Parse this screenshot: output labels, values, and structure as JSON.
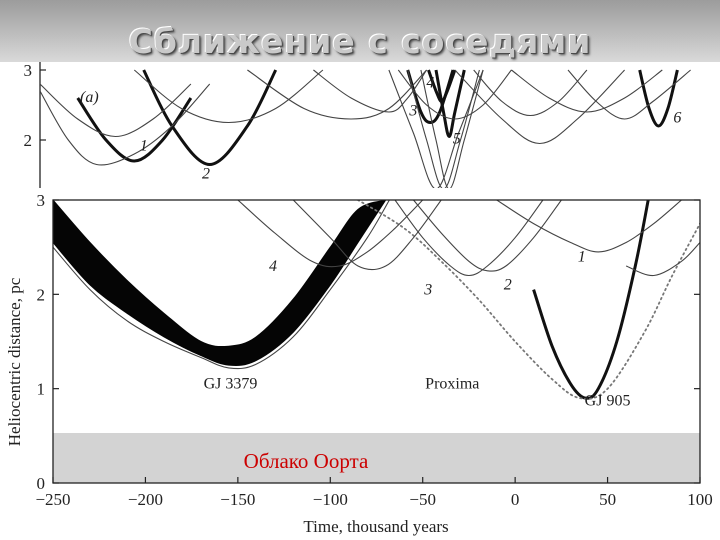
{
  "slide": {
    "title": "Сближение с соседями"
  },
  "chart_data": [
    {
      "type": "line",
      "panel_label": "(a)",
      "xlim": [
        -250,
        100
      ],
      "ylim": [
        1.3,
        3
      ],
      "y_ticks": [
        2,
        3
      ],
      "y_tick_labels": [
        "2",
        "3"
      ],
      "series": [
        {
          "name": "1",
          "style": "bold",
          "x": [
            -230,
            -215,
            -200,
            -185,
            -170
          ],
          "y": [
            2.6,
            2.0,
            1.7,
            2.0,
            2.6
          ]
        },
        {
          "name": "2",
          "style": "bold",
          "x": [
            -195,
            -180,
            -160,
            -140,
            -125
          ],
          "y": [
            3.0,
            2.2,
            1.65,
            2.2,
            3.0
          ]
        },
        {
          "name": "3",
          "style": "bold",
          "x": [
            -55,
            -48,
            -43,
            -38,
            -31
          ],
          "y": [
            3.0,
            2.4,
            2.25,
            2.4,
            3.0
          ]
        },
        {
          "name": "4",
          "style": "bold",
          "x": [
            -44,
            -40,
            -37,
            -34,
            -30
          ],
          "y": [
            3.0,
            2.7,
            2.55,
            2.7,
            3.0
          ]
        },
        {
          "name": "5",
          "style": "bold",
          "x": [
            -40,
            -36,
            -33,
            -30,
            -25
          ],
          "y": [
            3.0,
            2.4,
            2.05,
            2.4,
            3.0
          ]
        },
        {
          "name": "6",
          "style": "bold",
          "x": [
            68,
            73,
            78,
            83,
            88
          ],
          "y": [
            3.0,
            2.45,
            2.2,
            2.45,
            3.0
          ]
        },
        {
          "name": "",
          "style": "thin",
          "x": [
            -250,
            -230,
            -210,
            -190,
            -170
          ],
          "y": [
            2.8,
            2.3,
            2.05,
            2.3,
            2.8
          ]
        },
        {
          "name": "",
          "style": "thin",
          "x": [
            -250,
            -235,
            -220,
            -200,
            -180,
            -160
          ],
          "y": [
            2.7,
            2.0,
            1.65,
            1.8,
            2.2,
            2.8
          ]
        },
        {
          "name": "",
          "style": "thin",
          "x": [
            -200,
            -175,
            -150,
            -125,
            -100
          ],
          "y": [
            3.0,
            2.45,
            2.25,
            2.45,
            3.0
          ]
        },
        {
          "name": "",
          "style": "thin",
          "x": [
            -140,
            -110,
            -85,
            -65,
            -45
          ],
          "y": [
            3.0,
            2.45,
            2.3,
            2.45,
            3.0
          ]
        },
        {
          "name": "",
          "style": "thin",
          "x": [
            -105,
            -85,
            -65,
            -55,
            -45
          ],
          "y": [
            3.0,
            2.6,
            2.4,
            2.6,
            3.0
          ]
        },
        {
          "name": "",
          "style": "thin",
          "x": [
            -65,
            -52,
            -40,
            -28,
            -15
          ],
          "y": [
            3.0,
            2.1,
            1.3,
            2.1,
            3.0
          ]
        },
        {
          "name": "",
          "style": "thin",
          "x": [
            -55,
            -45,
            -36,
            -27,
            -17
          ],
          "y": [
            3.0,
            2.0,
            1.3,
            2.0,
            3.0
          ]
        },
        {
          "name": "",
          "style": "thin",
          "x": [
            -48,
            -40,
            -33,
            -25,
            -15
          ],
          "y": [
            3.0,
            2.0,
            1.3,
            2.0,
            3.0
          ]
        },
        {
          "name": "",
          "style": "thin",
          "x": [
            -60,
            -45,
            -30,
            -15,
            0
          ],
          "y": [
            3.0,
            2.5,
            2.3,
            2.5,
            3.0
          ]
        },
        {
          "name": "",
          "style": "thin",
          "x": [
            -20,
            -5,
            10,
            25,
            40
          ],
          "y": [
            3.0,
            2.55,
            2.35,
            2.55,
            3.0
          ]
        },
        {
          "name": "",
          "style": "thin",
          "x": [
            -30,
            -5,
            15,
            35,
            60
          ],
          "y": [
            3.0,
            2.3,
            1.95,
            2.3,
            3.0
          ]
        },
        {
          "name": "",
          "style": "thin",
          "x": [
            0,
            20,
            40,
            60,
            80
          ],
          "y": [
            3.0,
            2.6,
            2.4,
            2.6,
            3.0
          ]
        },
        {
          "name": "",
          "style": "thin",
          "x": [
            30,
            45,
            60,
            75,
            95
          ],
          "y": [
            3.0,
            2.55,
            2.3,
            2.55,
            3.0
          ]
        }
      ]
    },
    {
      "type": "line",
      "panel_label": "",
      "xlim": [
        -250,
        100
      ],
      "ylim": [
        0,
        3
      ],
      "x_ticks": [
        -250,
        -200,
        -150,
        -100,
        -50,
        0,
        50,
        100
      ],
      "x_tick_labels": [
        "−250",
        "−200",
        "−150",
        "−100",
        "−50",
        "0",
        "50",
        "100"
      ],
      "y_ticks": [
        0,
        1,
        2,
        3
      ],
      "y_tick_labels": [
        "0",
        "1",
        "2",
        "3"
      ],
      "xlabel": "Time, thousand years",
      "ylabel": "Heliocentric distance, pc",
      "band": {
        "label": "Облако Оорта",
        "y": [
          0,
          0.53
        ],
        "color": "#d3d3d3"
      },
      "series": [
        {
          "name": "GJ 3379",
          "style": "band",
          "x": [
            -250,
            -230,
            -210,
            -190,
            -170,
            -155,
            -140,
            -120,
            -100,
            -85,
            -70
          ],
          "y_low": [
            2.55,
            2.1,
            1.8,
            1.55,
            1.35,
            1.25,
            1.3,
            1.6,
            2.1,
            2.55,
            3.0
          ],
          "y_high": [
            3.0,
            2.55,
            2.15,
            1.8,
            1.5,
            1.45,
            1.55,
            1.95,
            2.5,
            2.9,
            3.0
          ]
        },
        {
          "name": "GJ 3379",
          "style": "thin",
          "x": [
            -250,
            -230,
            -210,
            -190,
            -170,
            -155,
            -140,
            -120,
            -100,
            -80,
            -68
          ],
          "y": [
            2.5,
            2.05,
            1.72,
            1.5,
            1.33,
            1.22,
            1.26,
            1.55,
            2.05,
            2.6,
            3.0
          ]
        },
        {
          "name": "GJ 905",
          "style": "bold",
          "x": [
            10,
            20,
            30,
            38,
            45,
            55,
            65,
            72
          ],
          "y": [
            2.05,
            1.45,
            1.05,
            0.9,
            1.0,
            1.5,
            2.3,
            3.0
          ]
        },
        {
          "name": "Proxima",
          "style": "dotted",
          "x": [
            -85,
            -60,
            -40,
            -20,
            0,
            20,
            35,
            50,
            70,
            85,
            100
          ],
          "y": [
            3.0,
            2.7,
            2.35,
            1.95,
            1.5,
            1.1,
            0.9,
            1.0,
            1.6,
            2.2,
            2.75
          ]
        },
        {
          "name": "1",
          "style": "thin",
          "x": [
            -10,
            10,
            30,
            45,
            60,
            75,
            90
          ],
          "y": [
            3.0,
            2.75,
            2.55,
            2.45,
            2.55,
            2.75,
            3.0
          ]
        },
        {
          "name": "2",
          "style": "thin",
          "x": [
            -55,
            -40,
            -25,
            -15,
            -5,
            10,
            25
          ],
          "y": [
            3.0,
            2.65,
            2.35,
            2.25,
            2.3,
            2.6,
            3.0
          ]
        },
        {
          "name": "3",
          "style": "thin",
          "x": [
            -65,
            -50,
            -35,
            -25,
            -15,
            0,
            15
          ],
          "y": [
            3.0,
            2.6,
            2.3,
            2.2,
            2.3,
            2.6,
            3.0
          ]
        },
        {
          "name": "4",
          "style": "thin",
          "x": [
            -150,
            -130,
            -110,
            -95,
            -80,
            -65,
            -50
          ],
          "y": [
            3.0,
            2.65,
            2.35,
            2.3,
            2.45,
            2.7,
            3.0
          ]
        },
        {
          "name": "",
          "style": "thin",
          "x": [
            -120,
            -100,
            -85,
            -70,
            -55,
            -40
          ],
          "y": [
            3.0,
            2.6,
            2.3,
            2.3,
            2.6,
            3.0
          ]
        },
        {
          "name": "",
          "style": "thin",
          "x": [
            60,
            75,
            90,
            100
          ],
          "y": [
            2.3,
            2.2,
            2.35,
            2.55
          ]
        }
      ],
      "annotations": [
        {
          "text": "1",
          "x": 36,
          "y": 2.35
        },
        {
          "text": "2",
          "x": -4,
          "y": 2.05
        },
        {
          "text": "3",
          "x": -47,
          "y": 2.0
        },
        {
          "text": "4",
          "x": -131,
          "y": 2.25
        },
        {
          "text": "GJ 3379",
          "x": -154,
          "y": 1.0
        },
        {
          "text": "Proxima",
          "x": -34,
          "y": 1.0
        },
        {
          "text": "GJ 905",
          "x": 50,
          "y": 0.82
        }
      ]
    }
  ],
  "panel_a_labels": [
    {
      "text": "1",
      "x": -195,
      "y": 1.85
    },
    {
      "text": "2",
      "x": -162,
      "y": 1.45
    },
    {
      "text": "3",
      "x": -52,
      "y": 2.35
    },
    {
      "text": "4",
      "x": -43,
      "y": 2.75
    },
    {
      "text": "5",
      "x": -29,
      "y": 1.95
    },
    {
      "text": "6",
      "x": 88,
      "y": 2.25
    }
  ]
}
